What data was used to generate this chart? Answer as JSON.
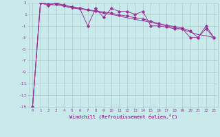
{
  "xlabel": "Windchill (Refroidissement éolien,°C)",
  "background_color": "#c8eaea",
  "grid_color": "#b0c8c8",
  "line_color": "#993399",
  "marker_color": "#993399",
  "xlim": [
    -0.5,
    23.5
  ],
  "ylim": [
    -15,
    3
  ],
  "xticks": [
    0,
    1,
    2,
    3,
    4,
    5,
    6,
    7,
    8,
    9,
    10,
    11,
    12,
    13,
    14,
    15,
    16,
    17,
    18,
    19,
    20,
    21,
    22,
    23
  ],
  "yticks": [
    -15,
    -13,
    -11,
    -9,
    -7,
    -5,
    -3,
    -1,
    1,
    3
  ],
  "series1_x": [
    0,
    1,
    2,
    3,
    4,
    5,
    6,
    7,
    8,
    9,
    10,
    11,
    12,
    13,
    14,
    15,
    16,
    17,
    18,
    19,
    20,
    21,
    22,
    23
  ],
  "series1_y": [
    -15,
    3,
    2.5,
    3,
    2.5,
    2.2,
    2.0,
    -1.0,
    2.0,
    0.5,
    2.0,
    1.5,
    1.5,
    1.0,
    1.5,
    -1.0,
    -1.0,
    -1.2,
    -1.5,
    -1.5,
    -3.0,
    -3.0,
    -1.0,
    -3.0
  ],
  "series2_x": [
    0,
    1,
    2,
    3,
    4,
    5,
    6,
    7,
    8,
    9,
    10,
    11,
    12,
    13,
    14,
    15,
    16,
    17,
    18,
    19,
    20,
    21,
    22,
    23
  ],
  "series2_y": [
    -15,
    3,
    2.7,
    2.6,
    2.4,
    2.1,
    1.9,
    1.7,
    1.5,
    1.2,
    1.0,
    0.7,
    0.4,
    0.1,
    -0.1,
    -0.4,
    -0.7,
    -1.0,
    -1.3,
    -1.6,
    -2.1,
    -2.5,
    -2.7,
    -3.0
  ],
  "series3_x": [
    0,
    1,
    2,
    3,
    4,
    5,
    6,
    7,
    8,
    9,
    10,
    11,
    12,
    13,
    14,
    15,
    16,
    17,
    18,
    19,
    20,
    21,
    22,
    23
  ],
  "series3_y": [
    -15,
    3,
    2.8,
    2.8,
    2.6,
    2.3,
    2.1,
    1.8,
    1.6,
    1.4,
    1.2,
    0.9,
    0.7,
    0.4,
    0.2,
    -0.2,
    -0.6,
    -0.9,
    -1.1,
    -1.4,
    -1.9,
    -3.0,
    -1.5,
    -3.0
  ]
}
